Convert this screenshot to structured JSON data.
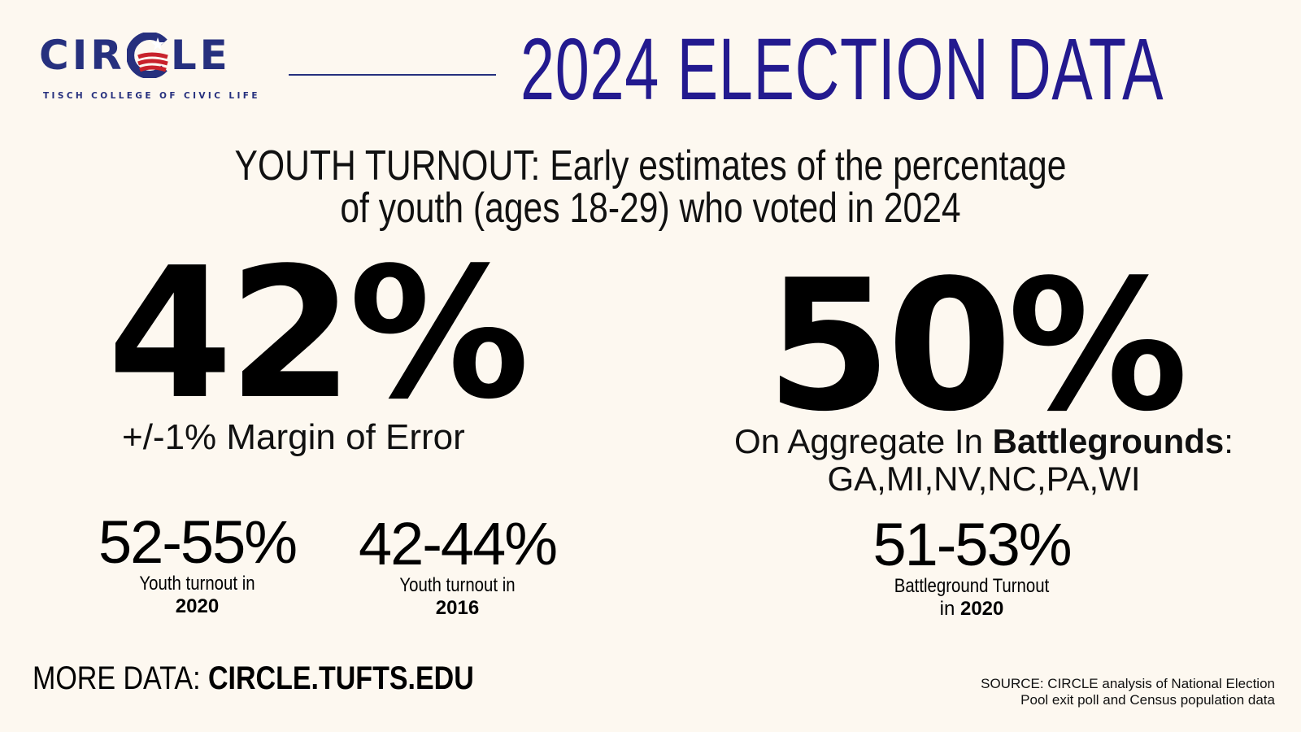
{
  "logo": {
    "left_text": "CIR",
    "right_text": "LE",
    "tagline": "TISCH COLLEGE OF CIVIC LIFE",
    "navy": "#26307e",
    "red": "#c8222b"
  },
  "header": {
    "title": "2024 ELECTION DATA",
    "title_color": "#231a8f"
  },
  "subtitle": {
    "line1": "YOUTH TURNOUT: Early estimates of the percentage",
    "line2": "of youth (ages 18-29) who voted in 2024"
  },
  "national": {
    "value": "42%",
    "margin": "+/-1% Margin of Error"
  },
  "battleground": {
    "value": "50%",
    "prefix": "On Aggregate In ",
    "bold": "Battlegrounds",
    "suffix": ":",
    "states": "GA,MI,NV,NC,PA,WI"
  },
  "comparisons": {
    "y2020": {
      "value": "52-55%",
      "label": "Youth turnout in",
      "year": "2020"
    },
    "y2016": {
      "value": "42-44%",
      "label": "Youth turnout in",
      "year": "2016"
    },
    "bg2020": {
      "value": "51-53%",
      "label": "Battleground Turnout",
      "label2_prefix": "in ",
      "year": "2020"
    }
  },
  "footer": {
    "more_prefix": "MORE DATA: ",
    "more_link": "CIRCLE.TUFTS.EDU",
    "source_line1": "SOURCE: CIRCLE analysis of National Election",
    "source_line2": "Pool exit poll and Census population data"
  },
  "background": "#fdf8f0"
}
